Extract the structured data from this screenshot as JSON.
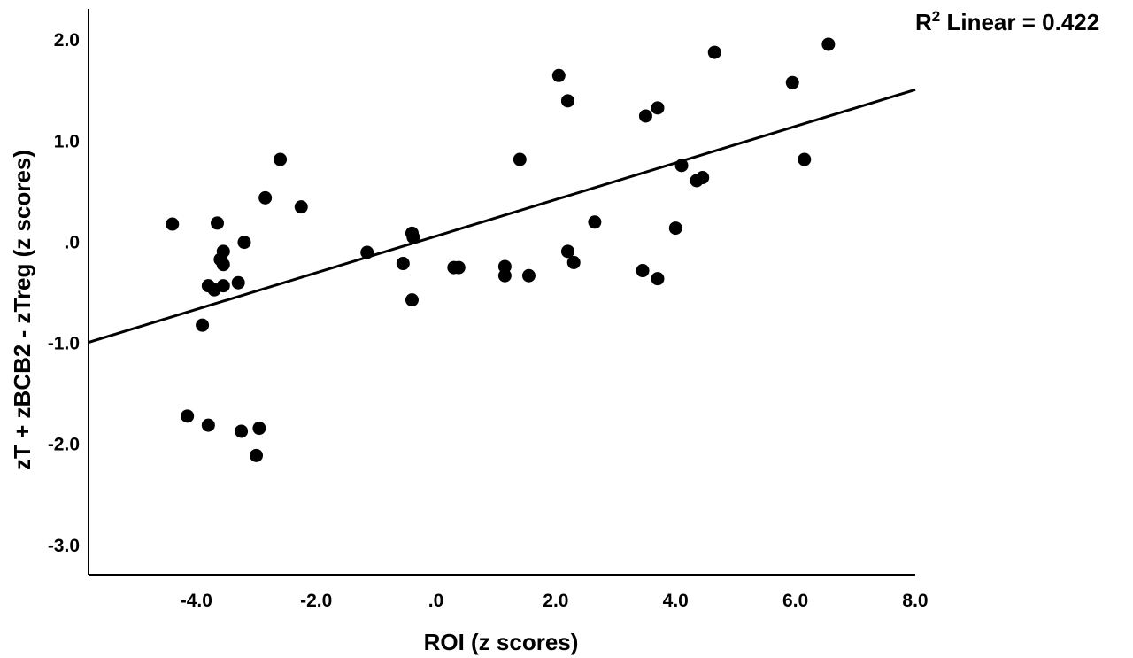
{
  "chart_data": {
    "type": "scatter",
    "title": "",
    "xlabel": "ROI (z scores)",
    "ylabel": "zT + zBCB2 - zTreg (z scores)",
    "xlim": [
      -5.8,
      8.0
    ],
    "ylim": [
      -3.3,
      2.3
    ],
    "xticks": [
      -4.0,
      -2.0,
      0.0,
      2.0,
      4.0,
      6.0,
      8.0
    ],
    "xtick_labels": [
      "-4.0",
      "-2.0",
      ".0",
      "2.0",
      "4.0",
      "6.0",
      "8.0"
    ],
    "yticks": [
      2.0,
      1.0,
      0.0,
      -1.0,
      -2.0,
      -3.0
    ],
    "ytick_labels": [
      "2.0",
      "1.0",
      ".0",
      "-1.0",
      "-2.0",
      "-3.0"
    ],
    "grid": false,
    "r2_annotation": {
      "prefix": "R",
      "superscript": "2",
      "text": " Linear = 0.422"
    },
    "fit_line": {
      "x": [
        -5.8,
        8.0
      ],
      "y": [
        -1.0,
        1.5
      ]
    },
    "points": [
      {
        "x": -4.4,
        "y": 0.17
      },
      {
        "x": -3.65,
        "y": 0.18
      },
      {
        "x": -3.55,
        "y": -0.1
      },
      {
        "x": -3.6,
        "y": -0.18
      },
      {
        "x": -3.55,
        "y": -0.23
      },
      {
        "x": -3.2,
        "y": -0.01
      },
      {
        "x": -3.8,
        "y": -0.44
      },
      {
        "x": -3.7,
        "y": -0.48
      },
      {
        "x": -3.55,
        "y": -0.44
      },
      {
        "x": -3.3,
        "y": -0.41
      },
      {
        "x": -3.9,
        "y": -0.83
      },
      {
        "x": -2.6,
        "y": 0.81
      },
      {
        "x": -2.85,
        "y": 0.43
      },
      {
        "x": -2.25,
        "y": 0.34
      },
      {
        "x": -4.15,
        "y": -1.73
      },
      {
        "x": -3.8,
        "y": -1.82
      },
      {
        "x": -3.25,
        "y": -1.88
      },
      {
        "x": -2.95,
        "y": -1.85
      },
      {
        "x": -3.0,
        "y": -2.12
      },
      {
        "x": -1.15,
        "y": -0.11
      },
      {
        "x": -0.4,
        "y": 0.08
      },
      {
        "x": -0.38,
        "y": 0.04
      },
      {
        "x": -0.55,
        "y": -0.22
      },
      {
        "x": -0.4,
        "y": -0.58
      },
      {
        "x": 0.3,
        "y": -0.26
      },
      {
        "x": 0.38,
        "y": -0.26
      },
      {
        "x": 1.15,
        "y": -0.25
      },
      {
        "x": 1.15,
        "y": -0.34
      },
      {
        "x": 1.55,
        "y": -0.34
      },
      {
        "x": 1.4,
        "y": 0.81
      },
      {
        "x": 2.05,
        "y": 1.64
      },
      {
        "x": 2.2,
        "y": 1.39
      },
      {
        "x": 2.2,
        "y": -0.1
      },
      {
        "x": 2.3,
        "y": -0.21
      },
      {
        "x": 2.65,
        "y": 0.19
      },
      {
        "x": 3.45,
        "y": -0.29
      },
      {
        "x": 3.5,
        "y": 1.24
      },
      {
        "x": 3.7,
        "y": 1.32
      },
      {
        "x": 3.7,
        "y": -0.37
      },
      {
        "x": 4.0,
        "y": 0.13
      },
      {
        "x": 4.1,
        "y": 0.75
      },
      {
        "x": 4.35,
        "y": 0.6
      },
      {
        "x": 4.45,
        "y": 0.63
      },
      {
        "x": 4.65,
        "y": 1.87
      },
      {
        "x": 5.95,
        "y": 1.57
      },
      {
        "x": 6.15,
        "y": 0.81
      },
      {
        "x": 6.55,
        "y": 1.95
      }
    ]
  }
}
